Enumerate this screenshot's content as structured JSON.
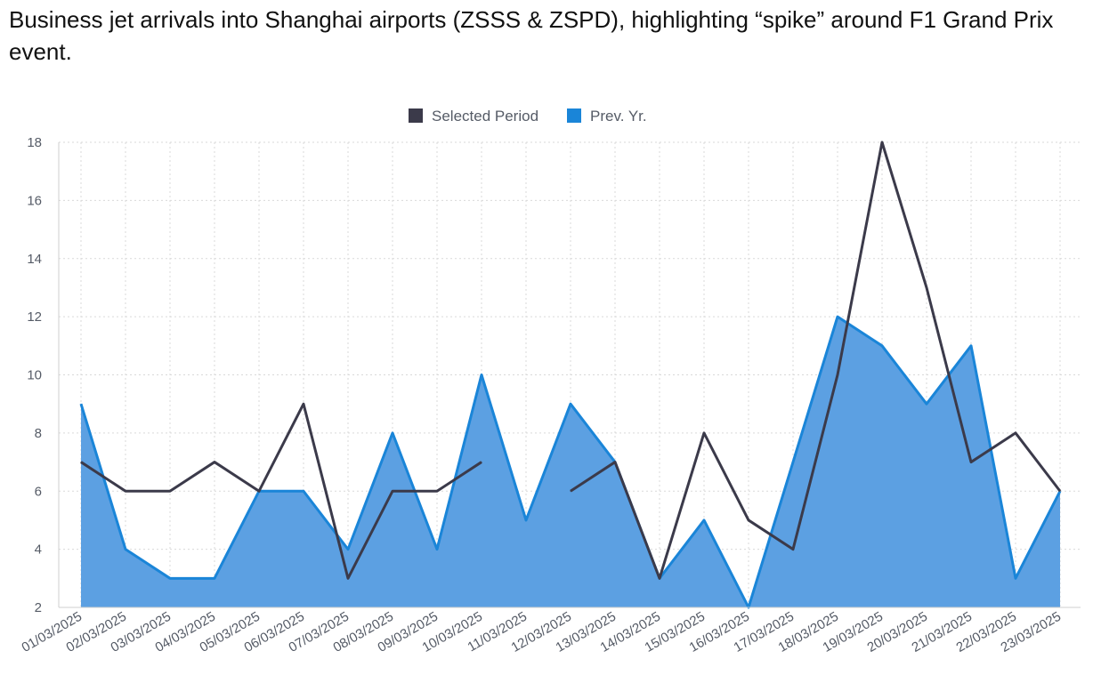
{
  "title": "Business jet arrivals into Shanghai airports (ZSSS & ZSPD), highlighting “spike” around F1 Grand Prix event.",
  "chart_data": {
    "type": "line",
    "title": "Business jet arrivals into Shanghai airports (ZSSS & ZSPD), highlighting “spike” around F1 Grand Prix event.",
    "categories": [
      "01/03/2025",
      "02/03/2025",
      "03/03/2025",
      "04/03/2025",
      "05/03/2025",
      "06/03/2025",
      "07/03/2025",
      "08/03/2025",
      "09/03/2025",
      "10/03/2025",
      "11/03/2025",
      "12/03/2025",
      "13/03/2025",
      "14/03/2025",
      "15/03/2025",
      "16/03/2025",
      "17/03/2025",
      "18/03/2025",
      "19/03/2025",
      "20/03/2025",
      "21/03/2025",
      "22/03/2025",
      "23/03/2025"
    ],
    "series": [
      {
        "name": "Selected Period",
        "kind": "line",
        "color": "#3b3a4a",
        "values": [
          7,
          6,
          6,
          7,
          6,
          9,
          3,
          6,
          6,
          7,
          null,
          6,
          7,
          3,
          8,
          5,
          4,
          10,
          18,
          13,
          7,
          8,
          6
        ]
      },
      {
        "name": "Prev. Yr.",
        "kind": "area",
        "color": "#1a85d8",
        "fill": "#5ca0e2",
        "values": [
          9,
          4,
          3,
          3,
          6,
          6,
          4,
          8,
          4,
          10,
          5,
          9,
          7,
          3,
          5,
          2,
          7,
          12,
          11,
          9,
          11,
          3,
          6
        ]
      }
    ],
    "yticks": [
      2,
      4,
      6,
      8,
      10,
      12,
      14,
      16,
      18
    ],
    "ylim": [
      2,
      18
    ],
    "xlabel": "",
    "ylabel": "",
    "grid": true,
    "legend_position": "top-center"
  }
}
